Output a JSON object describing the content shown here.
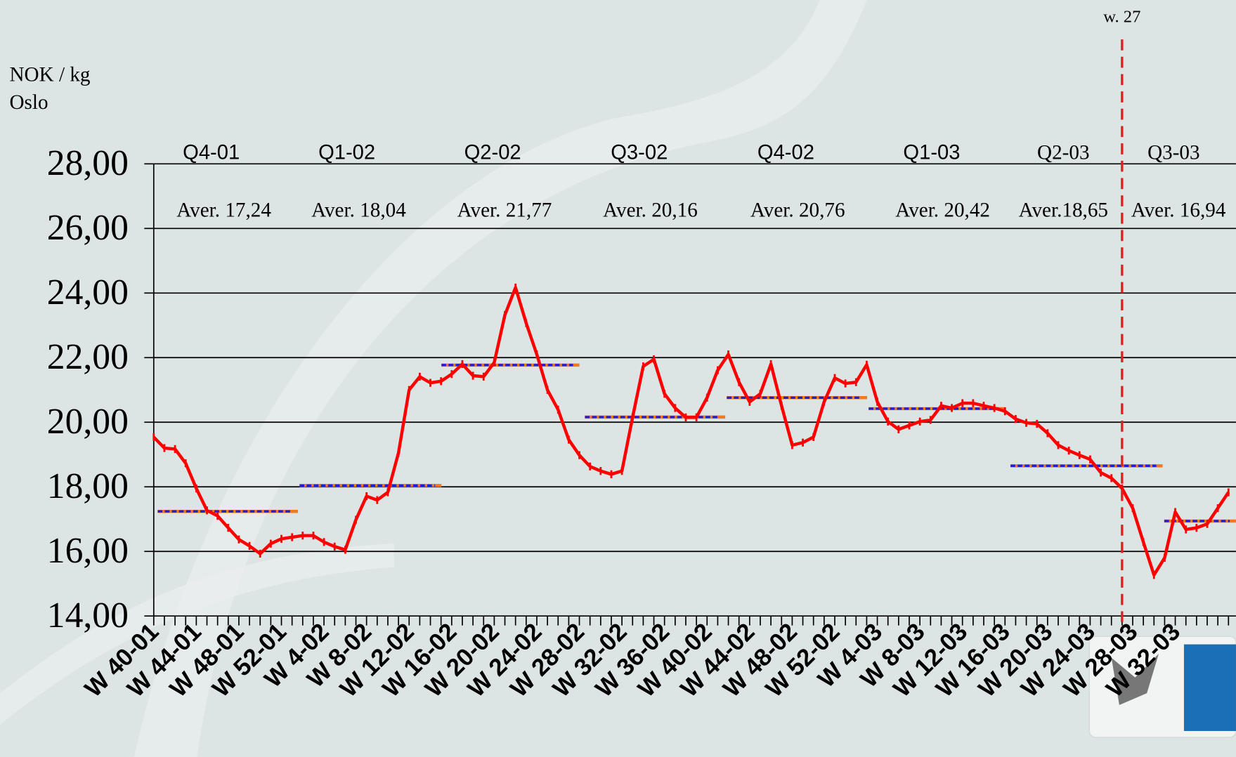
{
  "chart_data": {
    "type": "line",
    "y_label": "NOK / kg",
    "subtitle": "Oslo",
    "ylim": [
      14,
      28
    ],
    "yticks": [
      {
        "value": 14,
        "label": "14,00"
      },
      {
        "value": 16,
        "label": "16,00"
      },
      {
        "value": 18,
        "label": "18,00"
      },
      {
        "value": 20,
        "label": "20,00"
      },
      {
        "value": 22,
        "label": "22,00"
      },
      {
        "value": 24,
        "label": "24,00"
      },
      {
        "value": 26,
        "label": "26,00"
      },
      {
        "value": 28,
        "label": "28,00"
      }
    ],
    "grid": true,
    "categories": [
      "W 40-01",
      null,
      null,
      null,
      "W 44-01",
      null,
      null,
      null,
      "W 48-01",
      null,
      null,
      null,
      "W 52-01",
      null,
      null,
      null,
      "W 4-02",
      null,
      null,
      null,
      "W 8-02",
      null,
      null,
      null,
      "W 12-02",
      null,
      null,
      null,
      "W 16-02",
      null,
      null,
      null,
      "W 20-02",
      null,
      null,
      null,
      "W 24-02",
      null,
      null,
      null,
      "W 28-02",
      null,
      null,
      null,
      "W 32-02",
      null,
      null,
      null,
      "W 36-02",
      null,
      null,
      null,
      "W 40-02",
      null,
      null,
      null,
      "W 44-02",
      null,
      null,
      null,
      "W 48-02",
      null,
      null,
      null,
      "W 52-02",
      null,
      null,
      null,
      "W 4-03",
      null,
      null,
      null,
      "W 8-03",
      null,
      null,
      null,
      "W 12-03",
      null,
      null,
      null,
      "W 16-03",
      null,
      null,
      null,
      "W 20-03",
      null,
      null,
      null,
      "W 24-03",
      null,
      null,
      null,
      "W 28-03",
      null,
      null,
      null,
      "W 32-03",
      null,
      null,
      null,
      null,
      null
    ],
    "series": [
      {
        "color": "#ff0000",
        "values": [
          19.54,
          19.2,
          19.17,
          18.73,
          17.95,
          17.27,
          17.1,
          16.73,
          16.37,
          16.17,
          15.93,
          16.24,
          16.39,
          16.44,
          16.49,
          16.49,
          16.29,
          16.15,
          16.05,
          16.98,
          17.71,
          17.59,
          17.83,
          19.05,
          21.0,
          21.41,
          21.22,
          21.27,
          21.49,
          21.8,
          21.44,
          21.41,
          21.85,
          23.32,
          24.17,
          23.07,
          22.1,
          21.0,
          20.39,
          19.46,
          18.98,
          18.63,
          18.49,
          18.39,
          18.49,
          20.15,
          21.73,
          21.95,
          20.88,
          20.44,
          20.15,
          20.15,
          20.76,
          21.61,
          22.1,
          21.24,
          20.63,
          20.88,
          21.8,
          20.51,
          19.29,
          19.37,
          19.54,
          20.63,
          21.37,
          21.2,
          21.24,
          21.78,
          20.63,
          20.02,
          19.78,
          19.9,
          20.02,
          20.07,
          20.51,
          20.44,
          20.59,
          20.59,
          20.51,
          20.44,
          20.34,
          20.1,
          19.98,
          19.95,
          19.66,
          19.29,
          19.12,
          18.98,
          18.85,
          18.44,
          18.27,
          17.95,
          17.34,
          16.29,
          15.27,
          15.8,
          17.22,
          16.68,
          16.73,
          16.85,
          17.34,
          17.83
        ]
      }
    ],
    "quarters": [
      {
        "label": "Q4-01",
        "average_label": "Aver. 17,24",
        "value": 17.24
      },
      {
        "label": "Q1-02",
        "average_label": "Aver. 18,04",
        "value": 18.04
      },
      {
        "label": "Q2-02",
        "average_label": "Aver. 21,77",
        "value": 21.77
      },
      {
        "label": "Q3-02",
        "average_label": "Aver. 20,16",
        "value": 20.16
      },
      {
        "label": "Q4-02",
        "average_label": "Aver. 20,76",
        "value": 20.76
      },
      {
        "label": "Q1-03",
        "average_label": "Aver. 20,42",
        "value": 20.42
      },
      {
        "label": "Q2-03",
        "average_label": "Aver.18,65",
        "value": 18.65
      },
      {
        "label": "Q3-03",
        "average_label": "Aver. 16,94",
        "value": 16.94
      }
    ],
    "average_colors": [
      "#f07a20",
      "#2020d0"
    ],
    "marker": {
      "label": "w. 27",
      "color": "#e02020"
    }
  }
}
